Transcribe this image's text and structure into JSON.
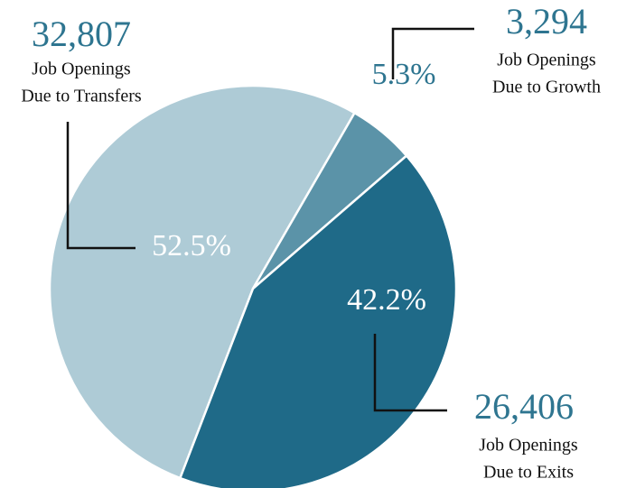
{
  "chart_data": {
    "type": "pie",
    "categories": [
      [
        "Job Openings",
        "Due to Transfers"
      ],
      [
        "Job Openings",
        "Due to Growth"
      ],
      [
        "Job Openings",
        "Due to Exits"
      ]
    ],
    "values": [
      52.5,
      5.3,
      42.2
    ],
    "value_labels": [
      "52.5%",
      "5.3%",
      "42.2%"
    ],
    "counts": [
      32807,
      3294,
      26406
    ],
    "count_labels": [
      "32,807",
      "3,294",
      "26,406"
    ],
    "colors": [
      "#aecbd6",
      "#5b93a8",
      "#1f6a88"
    ]
  }
}
